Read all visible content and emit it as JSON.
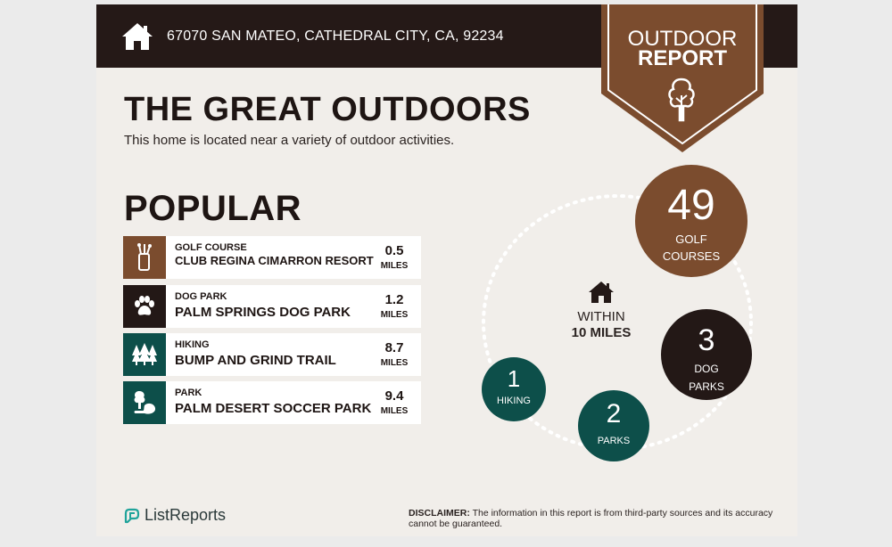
{
  "header": {
    "address": "67070 SAN MATEO, CATHEDRAL CITY, CA, 92234",
    "badge_line1": "OUTDOOR",
    "badge_line2": "REPORT"
  },
  "intro": {
    "title": "THE GREAT OUTDOORS",
    "subtitle": "This home is located near a variety of outdoor activities."
  },
  "popular": {
    "title": "POPULAR",
    "items": [
      {
        "category": "GOLF COURSE",
        "name": "CLUB REGINA CIMARRON RESORT",
        "distance": "0.5",
        "unit": "MILES",
        "icon": "golf-bag-icon",
        "color": "#7b4c2e"
      },
      {
        "category": "DOG PARK",
        "name": "PALM SPRINGS DOG PARK",
        "distance": "1.2",
        "unit": "MILES",
        "icon": "paw-icon",
        "color": "#231816"
      },
      {
        "category": "HIKING",
        "name": "BUMP AND GRIND TRAIL",
        "distance": "8.7",
        "unit": "MILES",
        "icon": "pine-trees-icon",
        "color": "#0d4f4a"
      },
      {
        "category": "PARK",
        "name": "PALM DESERT SOCCER PARK",
        "distance": "9.4",
        "unit": "MILES",
        "icon": "park-icon",
        "color": "#0d4f4a"
      }
    ]
  },
  "radius": {
    "line1": "WITHIN",
    "line2": "10 MILES",
    "bubbles": [
      {
        "count": "49",
        "label_line1": "GOLF",
        "label_line2": "COURSES",
        "color": "#7b4c2e"
      },
      {
        "count": "3",
        "label_line1": "DOG",
        "label_line2": "PARKS",
        "color": "#231816"
      },
      {
        "count": "1",
        "label_line1": "HIKING",
        "color": "#0d4f4a"
      },
      {
        "count": "2",
        "label_line1": "PARKS",
        "color": "#0d4f4a"
      }
    ]
  },
  "footer": {
    "brand": "ListReports",
    "disclaimer_label": "DISCLAIMER:",
    "disclaimer_text": " The information in this report is from third-party sources and its accuracy cannot be guaranteed."
  }
}
